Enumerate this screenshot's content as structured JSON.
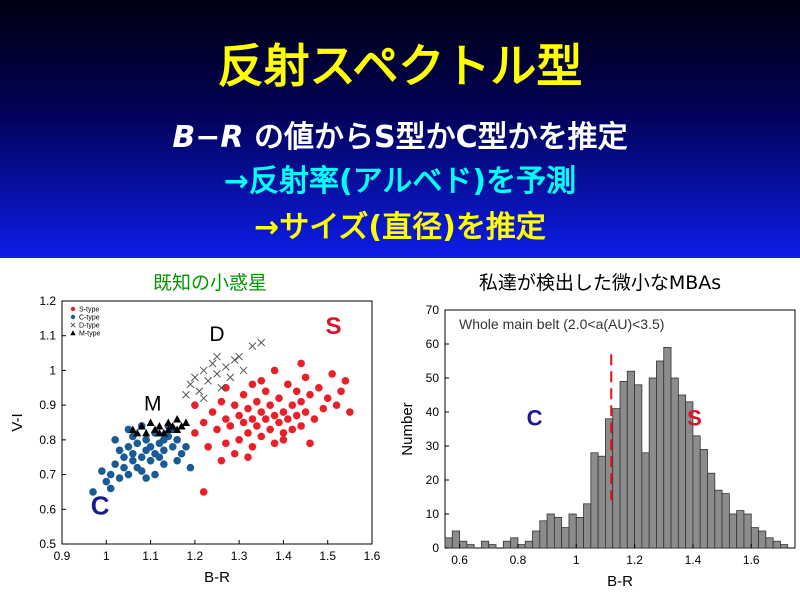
{
  "slide": {
    "title": "反射スペクトル型",
    "line1_var": "B−R",
    "line1_rest": "の値からS型かC型かを推定",
    "line2": "→反射率(アルベド)を予測",
    "line3": "→サイズ(直径)を推定"
  },
  "colors": {
    "header_top": "#000010",
    "header_bottom": "#0d1de8",
    "title": "#ffff00",
    "line2": "#00ffff",
    "left_title": "#009600",
    "s_type": "#e8202a",
    "c_type": "#1a5a96",
    "c_label": "#1a1a8c",
    "s_label": "#e0102a",
    "hist_bar": "#8c8c8c"
  },
  "chart_data": [
    {
      "type": "scatter",
      "title": "既知の小惑星",
      "xlabel": "B-R",
      "ylabel": "V-I",
      "xlim": [
        0.9,
        1.6
      ],
      "ylim": [
        0.5,
        1.2
      ],
      "xticks": [
        "0.9",
        "1",
        "1.1",
        "1.2",
        "1.3",
        "1.4",
        "1.5",
        "1.6"
      ],
      "yticks": [
        "0.5",
        "0.6",
        "0.7",
        "0.8",
        "0.9",
        "1",
        "1.1",
        "1.2"
      ],
      "legend": {
        "placement": "top-left",
        "entries": [
          "S-type",
          "C-type",
          "D-type",
          "M-type"
        ]
      },
      "annotations": {
        "S": "S",
        "C": "C",
        "D": "D",
        "M": "M"
      },
      "series": [
        {
          "name": "S-type",
          "points": [
            [
              1.2,
              0.82
            ],
            [
              1.22,
              0.85
            ],
            [
              1.23,
              0.78
            ],
            [
              1.24,
              0.88
            ],
            [
              1.25,
              0.83
            ],
            [
              1.26,
              0.91
            ],
            [
              1.27,
              0.86
            ],
            [
              1.27,
              0.79
            ],
            [
              1.28,
              0.84
            ],
            [
              1.29,
              0.9
            ],
            [
              1.3,
              0.87
            ],
            [
              1.3,
              0.8
            ],
            [
              1.31,
              0.93
            ],
            [
              1.31,
              0.85
            ],
            [
              1.32,
              0.82
            ],
            [
              1.32,
              0.89
            ],
            [
              1.33,
              0.86
            ],
            [
              1.33,
              0.78
            ],
            [
              1.34,
              0.91
            ],
            [
              1.34,
              0.84
            ],
            [
              1.35,
              0.88
            ],
            [
              1.35,
              0.81
            ],
            [
              1.36,
              0.94
            ],
            [
              1.36,
              0.86
            ],
            [
              1.37,
              0.83
            ],
            [
              1.37,
              0.9
            ],
            [
              1.38,
              0.87
            ],
            [
              1.38,
              0.79
            ],
            [
              1.39,
              0.92
            ],
            [
              1.39,
              0.85
            ],
            [
              1.4,
              0.88
            ],
            [
              1.4,
              0.82
            ],
            [
              1.41,
              0.96
            ],
            [
              1.41,
              0.86
            ],
            [
              1.42,
              0.9
            ],
            [
              1.42,
              0.83
            ],
            [
              1.43,
              0.94
            ],
            [
              1.43,
              0.87
            ],
            [
              1.44,
              0.91
            ],
            [
              1.44,
              0.84
            ],
            [
              1.45,
              0.98
            ],
            [
              1.45,
              0.88
            ],
            [
              1.46,
              0.93
            ],
            [
              1.47,
              0.86
            ],
            [
              1.48,
              0.95
            ],
            [
              1.49,
              0.89
            ],
            [
              1.5,
              0.92
            ],
            [
              1.51,
              0.99
            ],
            [
              1.52,
              0.9
            ],
            [
              1.53,
              0.94
            ],
            [
              1.54,
              0.97
            ],
            [
              1.55,
              0.88
            ],
            [
              1.46,
              0.79
            ],
            [
              1.38,
              1.0
            ],
            [
              1.33,
              0.96
            ],
            [
              1.26,
              0.74
            ],
            [
              1.29,
              0.76
            ],
            [
              1.44,
              1.02
            ],
            [
              1.22,
              0.65
            ],
            [
              1.2,
              0.9
            ],
            [
              1.27,
              0.95
            ],
            [
              1.35,
              0.97
            ],
            [
              1.4,
              0.8
            ],
            [
              1.32,
              0.75
            ]
          ]
        },
        {
          "name": "C-type",
          "points": [
            [
              0.97,
              0.65
            ],
            [
              1.0,
              0.68
            ],
            [
              1.01,
              0.7
            ],
            [
              1.02,
              0.73
            ],
            [
              1.03,
              0.69
            ],
            [
              1.04,
              0.75
            ],
            [
              1.04,
              0.72
            ],
            [
              1.05,
              0.78
            ],
            [
              1.05,
              0.7
            ],
            [
              1.06,
              0.74
            ],
            [
              1.06,
              0.76
            ],
            [
              1.07,
              0.72
            ],
            [
              1.07,
              0.79
            ],
            [
              1.08,
              0.75
            ],
            [
              1.08,
              0.71
            ],
            [
              1.09,
              0.77
            ],
            [
              1.09,
              0.8
            ],
            [
              1.1,
              0.74
            ],
            [
              1.1,
              0.78
            ],
            [
              1.11,
              0.76
            ],
            [
              1.11,
              0.82
            ],
            [
              1.12,
              0.79
            ],
            [
              1.12,
              0.75
            ],
            [
              1.13,
              0.8
            ],
            [
              1.13,
              0.77
            ],
            [
              1.14,
              0.81
            ],
            [
              1.15,
              0.78
            ],
            [
              1.15,
              0.83
            ],
            [
              1.16,
              0.8
            ],
            [
              1.17,
              0.76
            ],
            [
              1.03,
              0.77
            ],
            [
              0.99,
              0.71
            ],
            [
              1.01,
              0.66
            ],
            [
              1.06,
              0.81
            ],
            [
              1.09,
              0.69
            ],
            [
              1.13,
              0.73
            ],
            [
              1.18,
              0.78
            ],
            [
              1.19,
              0.72
            ],
            [
              1.05,
              0.83
            ],
            [
              1.08,
              0.84
            ],
            [
              1.11,
              0.7
            ],
            [
              1.02,
              0.8
            ],
            [
              1.14,
              0.84
            ],
            [
              1.16,
              0.74
            ]
          ]
        },
        {
          "name": "D-type",
          "points": [
            [
              1.18,
              0.93
            ],
            [
              1.19,
              0.96
            ],
            [
              1.2,
              0.98
            ],
            [
              1.21,
              0.94
            ],
            [
              1.22,
              1.0
            ],
            [
              1.23,
              0.97
            ],
            [
              1.24,
              1.02
            ],
            [
              1.25,
              0.99
            ],
            [
              1.26,
              0.95
            ],
            [
              1.27,
              1.01
            ],
            [
              1.28,
              0.98
            ],
            [
              1.29,
              1.03
            ],
            [
              1.3,
              1.04
            ],
            [
              1.31,
              1.0
            ],
            [
              1.33,
              1.07
            ],
            [
              1.35,
              1.08
            ],
            [
              1.25,
              1.04
            ],
            [
              1.22,
              0.92
            ]
          ]
        },
        {
          "name": "M-type",
          "points": [
            [
              1.06,
              0.83
            ],
            [
              1.08,
              0.84
            ],
            [
              1.09,
              0.82
            ],
            [
              1.1,
              0.85
            ],
            [
              1.11,
              0.83
            ],
            [
              1.12,
              0.84
            ],
            [
              1.13,
              0.82
            ],
            [
              1.14,
              0.85
            ],
            [
              1.15,
              0.84
            ],
            [
              1.16,
              0.83
            ],
            [
              1.17,
              0.84
            ],
            [
              1.18,
              0.85
            ],
            [
              1.12,
              0.82
            ],
            [
              1.14,
              0.83
            ],
            [
              1.07,
              0.82
            ],
            [
              1.16,
              0.86
            ]
          ]
        }
      ]
    },
    {
      "type": "bar",
      "title": "私達が検出した微小なMBAs",
      "xlabel": "B-R",
      "ylabel": "Number",
      "xlim": [
        0.55,
        1.75
      ],
      "ylim": [
        0,
        70
      ],
      "xticks": [
        "0.6",
        "0.8",
        "1",
        "1.2",
        "1.4",
        "1.6"
      ],
      "yticks": [
        "0",
        "10",
        "20",
        "30",
        "40",
        "50",
        "60",
        "70"
      ],
      "legend_text": "Whole main belt (2.0<a(AU)<3.5)",
      "annotations": {
        "C": "C",
        "S": "S"
      },
      "divider_x": 1.12,
      "bin_width": 0.025,
      "bin_start": 0.55,
      "values": [
        3,
        5,
        2,
        1,
        0,
        2,
        1,
        0,
        2,
        3,
        1,
        2,
        5,
        8,
        10,
        9,
        6,
        10,
        9,
        13,
        28,
        27,
        38,
        41,
        49,
        52,
        48,
        28,
        50,
        55,
        59,
        50,
        45,
        43,
        33,
        29,
        22,
        17,
        16,
        10,
        11,
        10,
        6,
        5,
        3,
        2,
        1
      ]
    }
  ]
}
